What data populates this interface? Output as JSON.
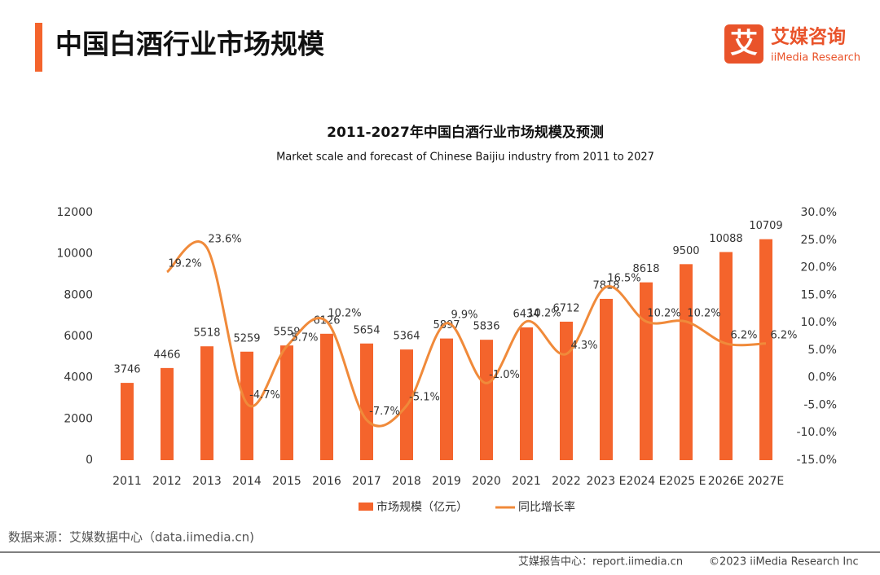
{
  "header": {
    "title": "中国白酒行业市场规模",
    "logo_mark": "艾",
    "logo_name": "艾媒咨询",
    "logo_sub": "iiMedia Research"
  },
  "chart_data": {
    "type": "bar-line",
    "title": "2011-2027年中国白酒行业市场规模及预测",
    "subtitle": "Market scale and forecast of Chinese Baijiu industry from 2011 to 2027",
    "categories": [
      "2011",
      "2012",
      "2013",
      "2014",
      "2015",
      "2016",
      "2017",
      "2018",
      "2019",
      "2020",
      "2021",
      "2022",
      "2023 E",
      "2024 E",
      "2025 E",
      "2026E",
      "2027E"
    ],
    "series": [
      {
        "name": "市场规模（亿元）",
        "type": "bar",
        "color": "#f4642c",
        "values": [
          3746,
          4466,
          5518,
          5259,
          5559,
          6126,
          5654,
          5364,
          5897,
          5836,
          6434,
          6712,
          7818,
          8618,
          9500,
          10088,
          10709
        ]
      },
      {
        "name": "同比增长率",
        "type": "line",
        "axis": "y2",
        "color": "#f08a3a",
        "values": [
          null,
          19.2,
          23.6,
          -4.7,
          5.7,
          10.2,
          -7.7,
          -5.1,
          9.9,
          -1.0,
          10.2,
          4.3,
          16.5,
          10.2,
          10.2,
          6.2,
          6.2
        ],
        "value_labels": [
          null,
          "19.2%",
          "23.6%",
          "-4.7%",
          "5.7%",
          "10.2%",
          "-7.7%",
          "-5.1%",
          "9.9%",
          "-1.0%",
          "10.2%",
          "4.3%",
          "16.5%",
          "10.2%",
          "10.2%",
          "6.2%",
          "6.2%"
        ]
      }
    ],
    "ylim": [
      0,
      12000
    ],
    "yticks": [
      0,
      2000,
      4000,
      6000,
      8000,
      10000,
      12000
    ],
    "y2lim": [
      -15,
      30
    ],
    "y2ticks": [
      {
        "value": -15,
        "label": "-15.0%"
      },
      {
        "value": -10,
        "label": "-10.0%"
      },
      {
        "value": -5,
        "label": "-5.0%"
      },
      {
        "value": 0,
        "label": "0.0%"
      },
      {
        "value": 5,
        "label": "5.0%"
      },
      {
        "value": 10,
        "label": "10.0%"
      },
      {
        "value": 15,
        "label": "15.0%"
      },
      {
        "value": 20,
        "label": "20.0%"
      },
      {
        "value": 25,
        "label": "25.0%"
      },
      {
        "value": 30,
        "label": "30.0%"
      }
    ],
    "grid": false
  },
  "source": "数据来源：艾媒数据中心（data.iimedia.cn)",
  "footer": {
    "left": "艾媒报告中心：report.iimedia.cn",
    "right": "©2023  iiMedia Research  Inc"
  }
}
